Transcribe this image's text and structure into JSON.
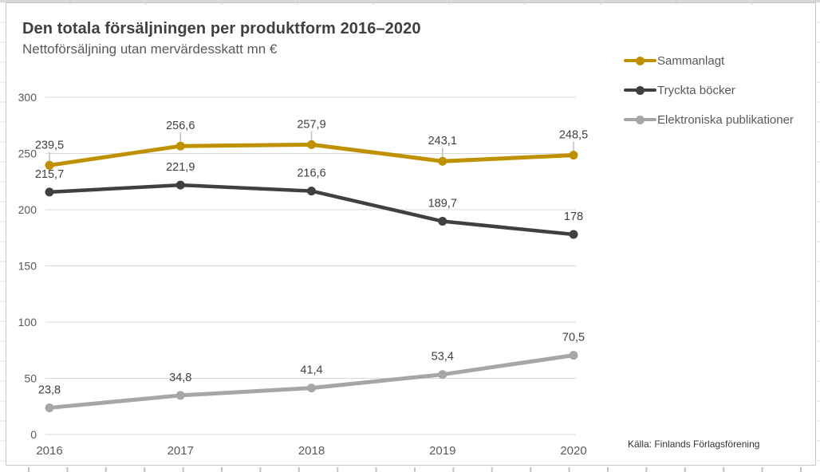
{
  "chart_data": {
    "type": "line",
    "title": "Den totala försäljningen per produktform 2016–2020",
    "subtitle": "Nettoförsäljning utan mervärdesskatt mn €",
    "source": "Källa: Finlands Förlagsförening",
    "categories": [
      "2016",
      "2017",
      "2018",
      "2019",
      "2020"
    ],
    "series": [
      {
        "name": "Sammanlagt",
        "color": "#BF9000",
        "stroke_width": 5,
        "leader_ticks": true,
        "values": [
          239.5,
          256.6,
          257.9,
          243.1,
          248.5
        ],
        "labels": [
          "239,5",
          "256,6",
          "257,9",
          "243,1",
          "248,5"
        ]
      },
      {
        "name": "Tryckta böcker",
        "color": "#404040",
        "stroke_width": 4.5,
        "leader_ticks": false,
        "values": [
          215.7,
          221.9,
          216.6,
          189.7,
          178
        ],
        "labels": [
          "215,7",
          "221,9",
          "216,6",
          "189,7",
          "178"
        ]
      },
      {
        "name": "Elektroniska publikationer",
        "color": "#A6A6A6",
        "stroke_width": 5,
        "leader_ticks": false,
        "values": [
          23.8,
          34.8,
          41.4,
          53.4,
          70.5
        ],
        "labels": [
          "23,8",
          "34,8",
          "41,4",
          "53,4",
          "70,5"
        ]
      }
    ],
    "ylim": [
      0,
      300
    ],
    "yticks": [
      0,
      50,
      100,
      150,
      200,
      250,
      300
    ],
    "xlabel": "",
    "ylabel": "",
    "grid": true,
    "legend_position": "right",
    "colors": {
      "grid": "#D9D9D9",
      "axis_text": "#595959",
      "label_text": "#404040",
      "leader_tick": "#BFBFBF"
    }
  }
}
